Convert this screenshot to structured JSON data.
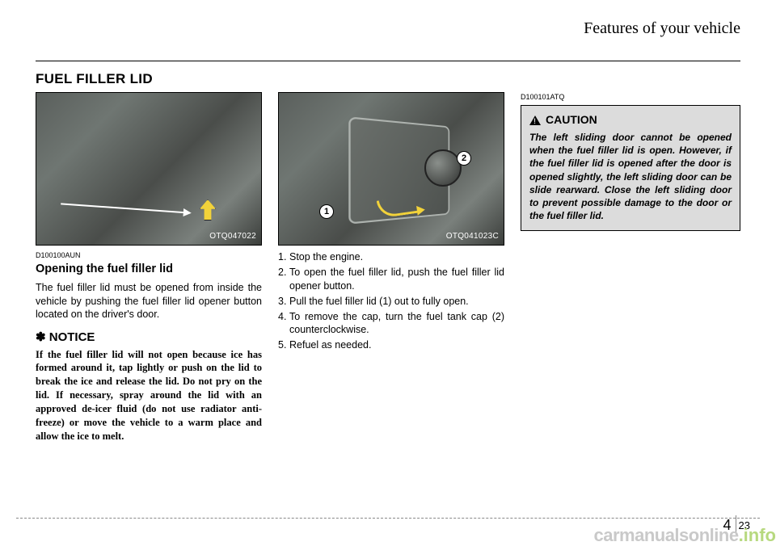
{
  "chapter_title": "Features of your vehicle",
  "section_title": "FUEL FILLER LID",
  "col1": {
    "photo_label": "OTQ047022",
    "code": "D100100AUN",
    "subhead": "Opening the fuel filler lid",
    "body": "The fuel filler lid must be opened from inside the vehicle by pushing the fuel filler lid opener button located on the driver's door.",
    "notice_head": "✽ NOTICE",
    "notice_body": "If the fuel filler lid will not open because ice has formed around it, tap lightly or push on the lid to break the ice and release the lid. Do not pry on the lid. If necessary, spray around the lid with an approved de-icer fluid (do not use radiator anti-freeze) or move the vehicle to a warm place and allow the ice to melt."
  },
  "col2": {
    "photo_label": "OTQ041023C",
    "steps": [
      "Stop the engine.",
      "To open the fuel filler lid, push the fuel filler lid opener button.",
      "Pull the fuel filler lid (1) out to fully open.",
      "To remove the cap, turn the fuel tank cap (2) counterclockwise.",
      "Refuel as needed."
    ]
  },
  "col3": {
    "code": "D100101ATQ",
    "caution_head": "CAUTION",
    "caution_body": "The left sliding door cannot be opened when the fuel filler lid is open. However, if the fuel filler lid is opened after the door is opened slightly, the left sliding door can be slide rearward. Close the left sliding door to prevent possible damage to the door or the fuel filler lid."
  },
  "page": {
    "chapter": "4",
    "num": "23"
  },
  "watermark": {
    "a": "carmanualsonline",
    "b": ".info"
  },
  "colors": {
    "bg": "#ffffff",
    "text": "#000000",
    "caution_bg": "#dcdcdc",
    "wm_gray": "#c9c9c9",
    "wm_green": "#b7d97f"
  }
}
